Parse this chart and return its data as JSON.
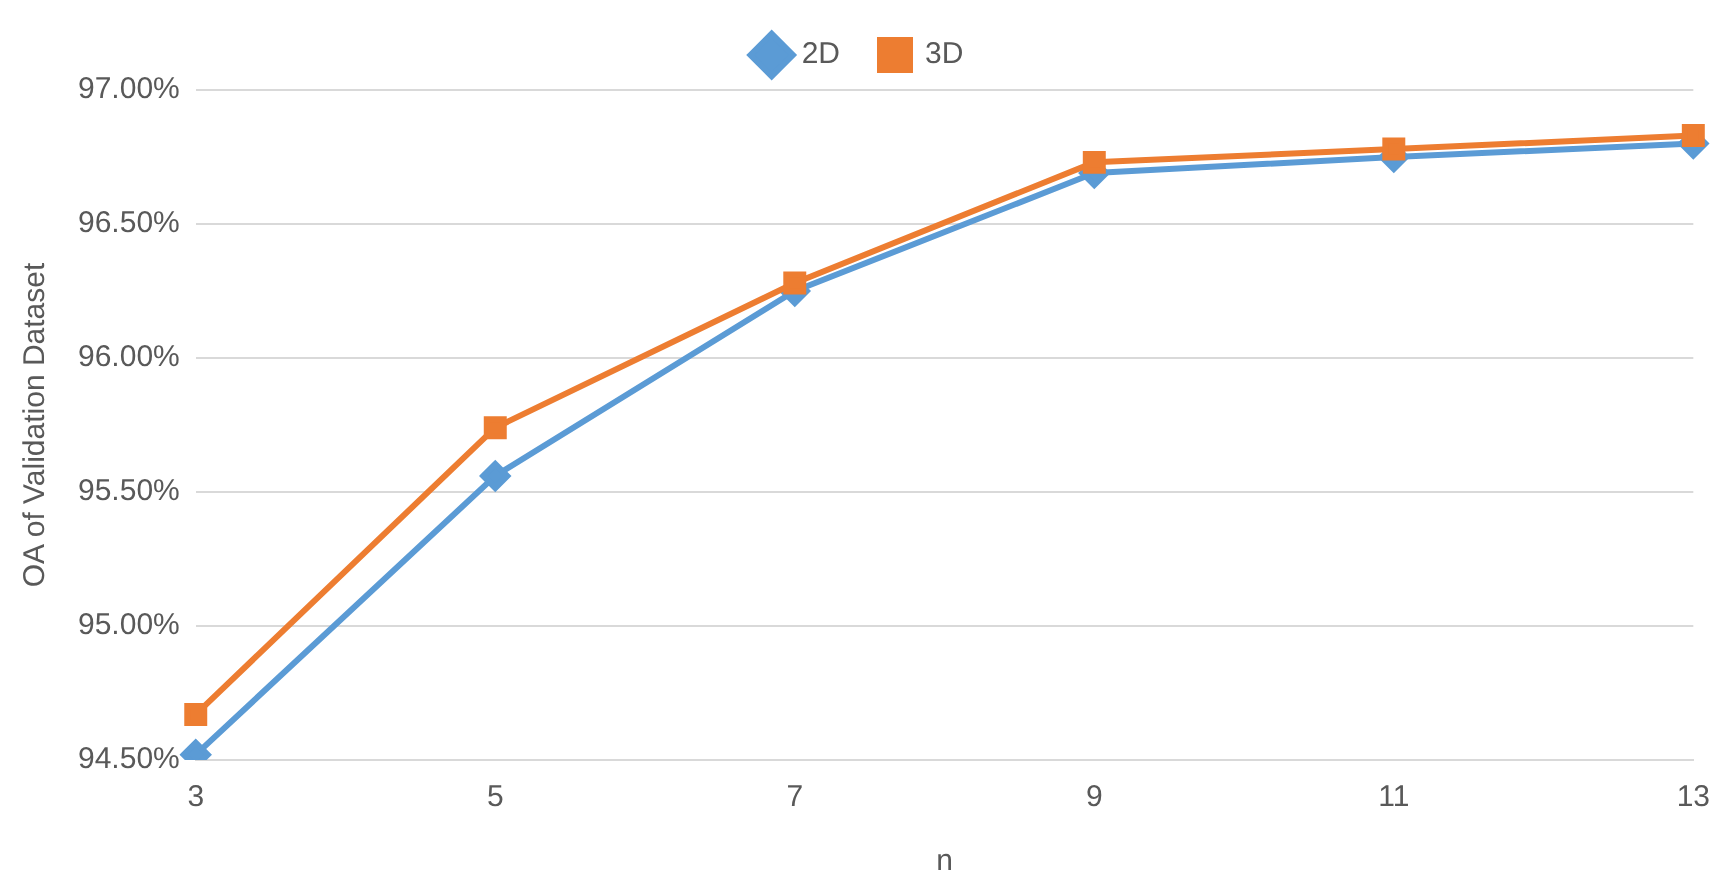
{
  "chart_data": {
    "type": "line",
    "xlabel": "n",
    "ylabel": "OA of Validation Dataset",
    "categories": [
      "3",
      "5",
      "7",
      "9",
      "11",
      "13"
    ],
    "series": [
      {
        "name": "2D",
        "color": "#5b9bd5",
        "marker": "diamond",
        "values": [
          94.52,
          95.56,
          96.25,
          96.69,
          96.75,
          96.8
        ]
      },
      {
        "name": "3D",
        "color": "#ed7d31",
        "marker": "square",
        "values": [
          94.67,
          95.74,
          96.28,
          96.73,
          96.78,
          96.83
        ]
      }
    ],
    "ylim": [
      94.5,
      97.0
    ],
    "yticks": [
      {
        "value": 94.5,
        "label": "94.50%"
      },
      {
        "value": 95.0,
        "label": "95.00%"
      },
      {
        "value": 95.5,
        "label": "95.50%"
      },
      {
        "value": 96.0,
        "label": "96.00%"
      },
      {
        "value": 96.5,
        "label": "96.50%"
      },
      {
        "value": 97.0,
        "label": "97.00%"
      }
    ],
    "grid": "y",
    "legend": "top"
  }
}
